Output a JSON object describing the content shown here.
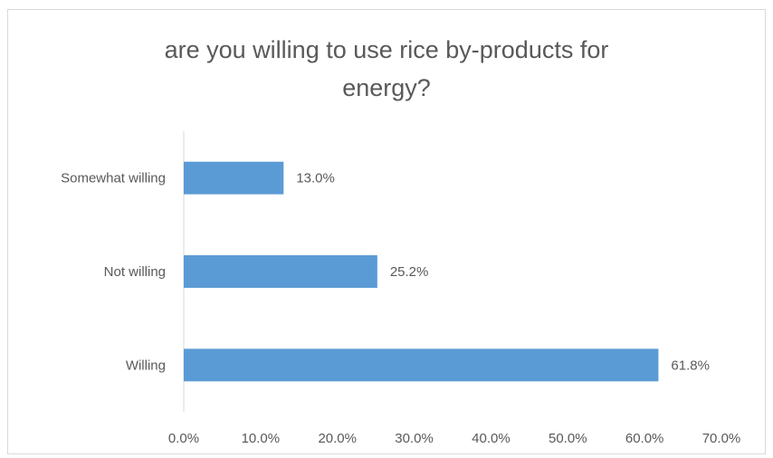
{
  "chart_data": {
    "type": "bar",
    "orientation": "horizontal",
    "title_lines": [
      "are you willing to use rice by-products for",
      "energy?"
    ],
    "categories": [
      "Somewhat willing",
      "Not willing",
      "Willing"
    ],
    "values": [
      13.0,
      25.2,
      61.8
    ],
    "data_labels": [
      "13.0%",
      "25.2%",
      "61.8%"
    ],
    "x_ticks": [
      0,
      10,
      20,
      30,
      40,
      50,
      60,
      70
    ],
    "x_tick_labels": [
      "0.0%",
      "10.0%",
      "20.0%",
      "30.0%",
      "40.0%",
      "50.0%",
      "60.0%",
      "70.0%"
    ],
    "xlim": [
      0,
      70
    ],
    "xlabel": "",
    "ylabel": "",
    "grid": false,
    "legend": "none",
    "bar_color": "#5b9bd5",
    "axis_color": "#d9d9d9",
    "text_color": "#595959"
  }
}
